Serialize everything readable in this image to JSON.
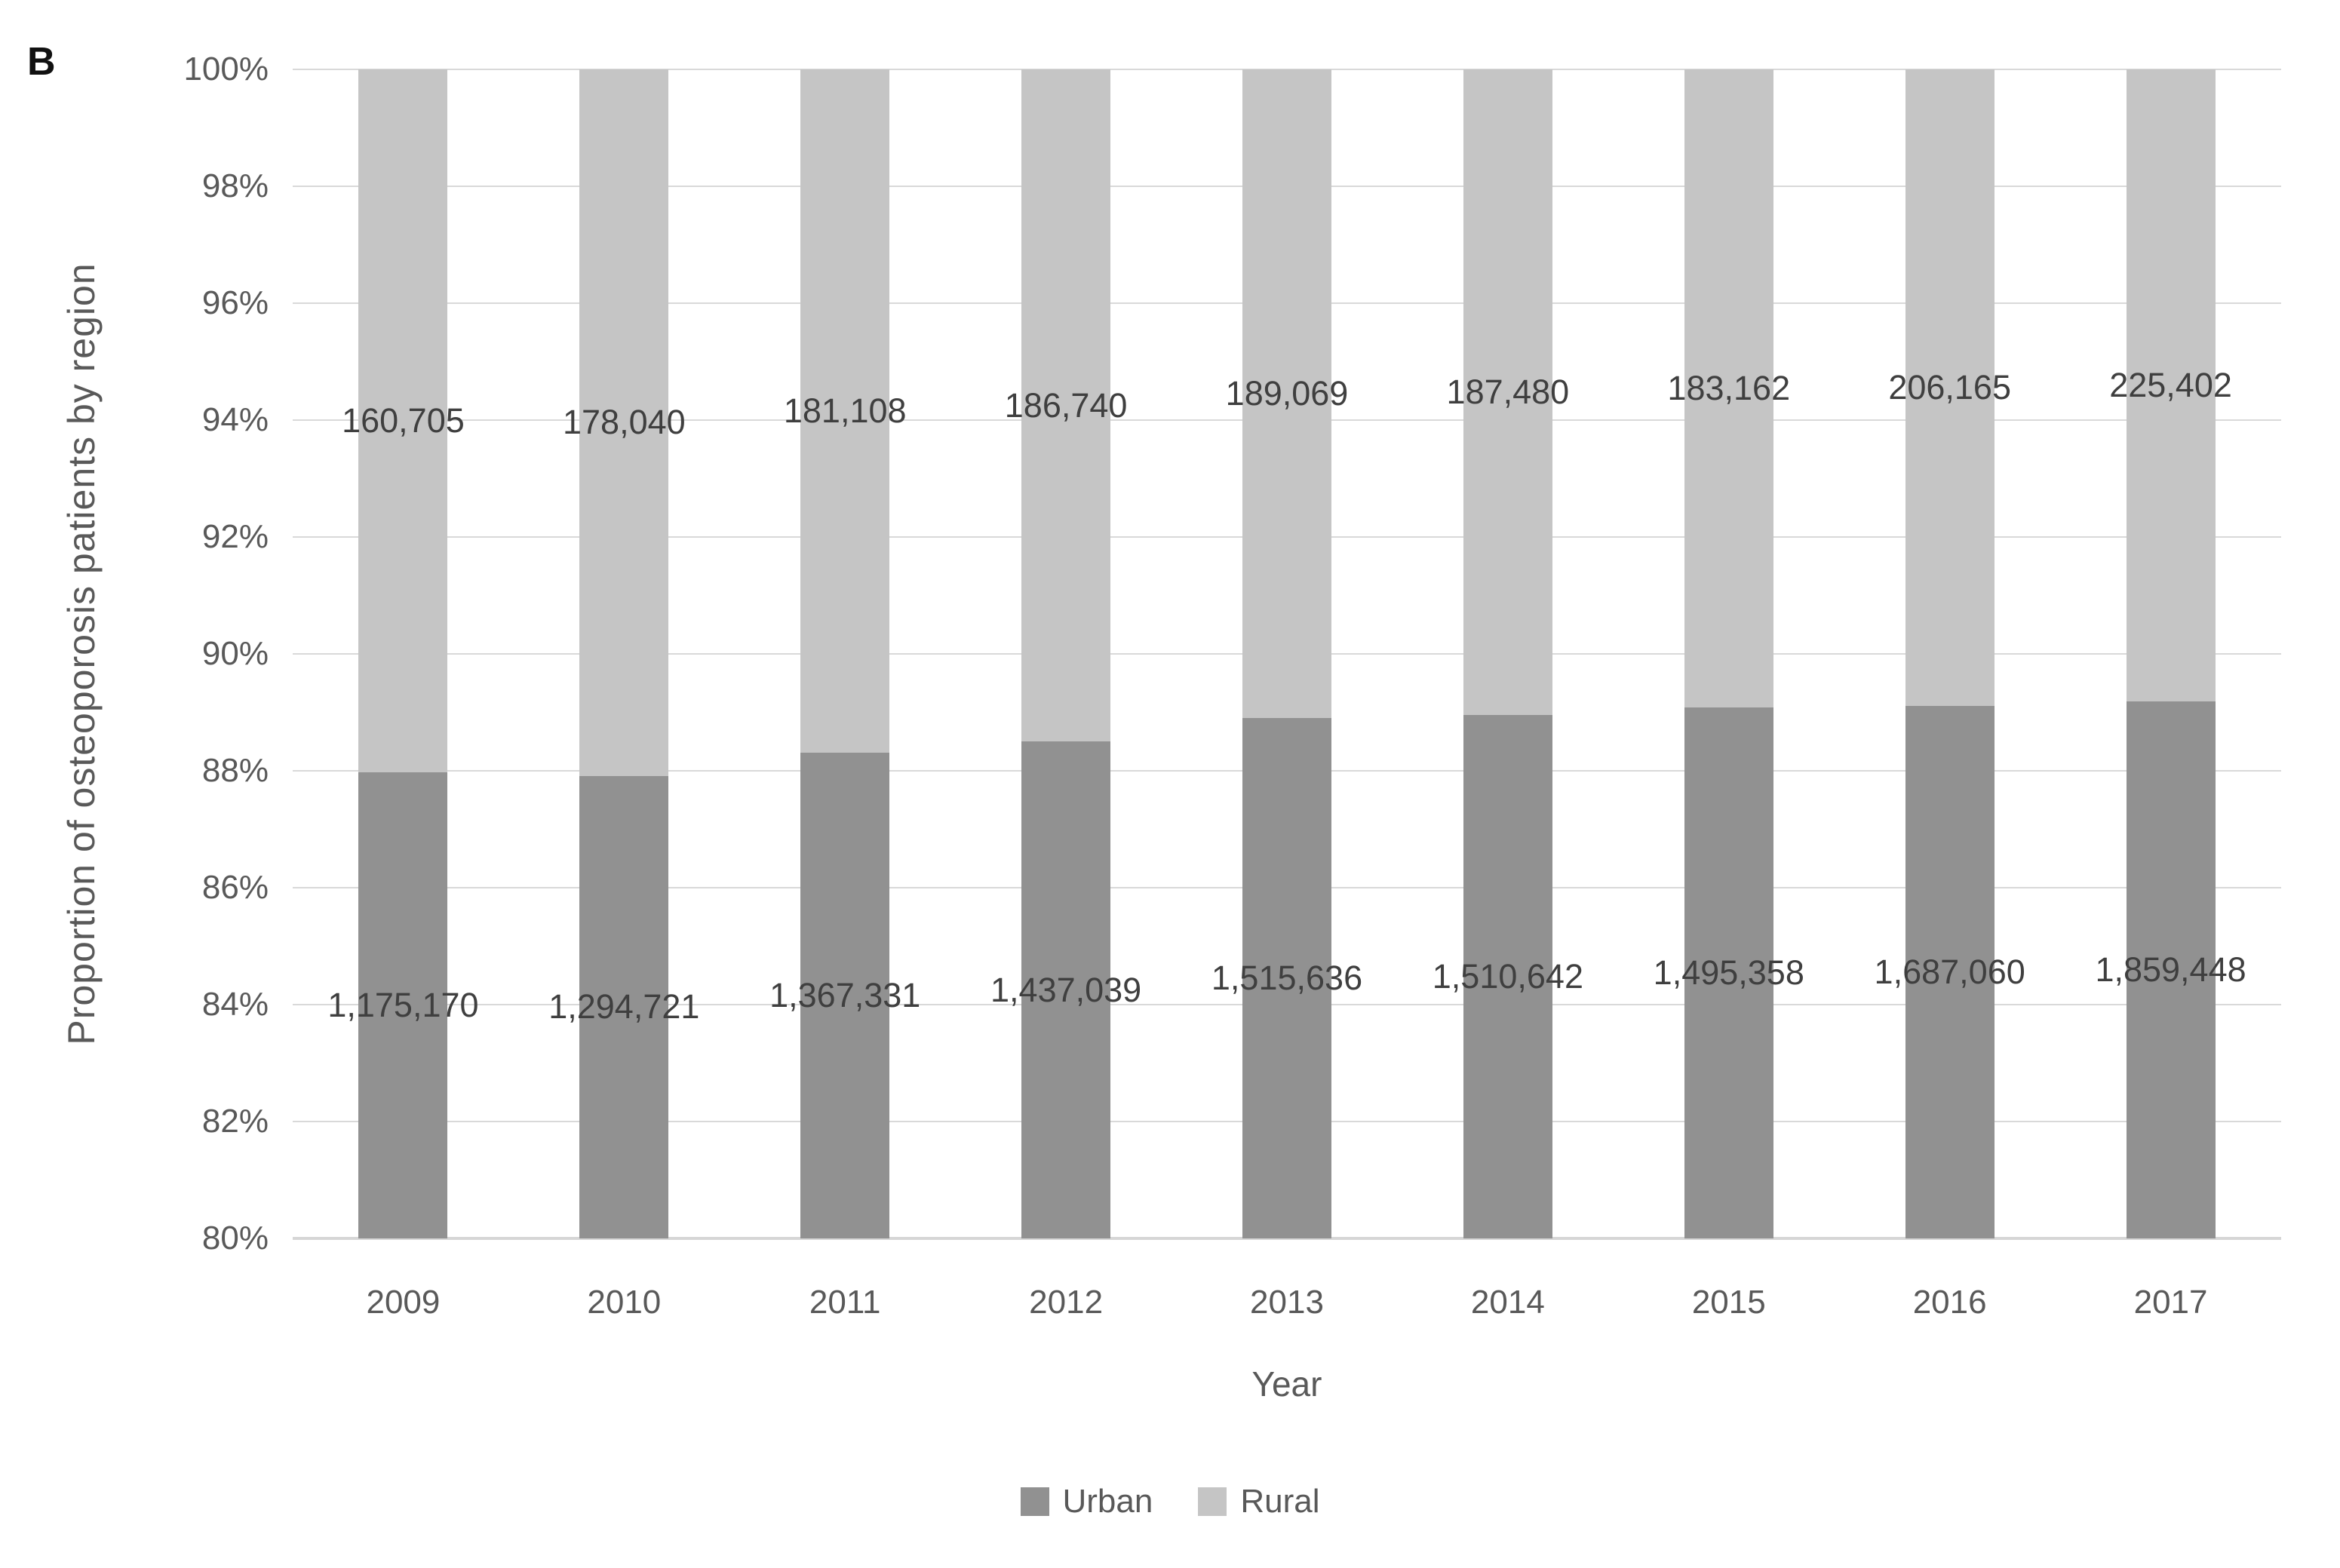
{
  "chart_data": {
    "type": "bar",
    "variant": "stacked-100-percent",
    "panel_label": "B",
    "xlabel": "Year",
    "ylabel": "Proportion of osteoporosis patients by region",
    "categories": [
      "2009",
      "2010",
      "2011",
      "2012",
      "2013",
      "2014",
      "2015",
      "2016",
      "2017"
    ],
    "series": [
      {
        "name": "Urban",
        "color": "#919191",
        "values": [
          1175170,
          1294721,
          1367331,
          1437039,
          1515636,
          1510642,
          1495358,
          1687060,
          1859448
        ],
        "labels": [
          "1,175,170",
          "1,294,721",
          "1,367,331",
          "1,437,039",
          "1,515,636",
          "1,510,642",
          "1,495,358",
          "1,687,060",
          "1,859,448"
        ]
      },
      {
        "name": "Rural",
        "color": "#c5c5c5",
        "values": [
          160705,
          178040,
          181108,
          186740,
          189069,
          187480,
          183162,
          206165,
          225402
        ],
        "labels": [
          "160,705",
          "178,040",
          "181,108",
          "186,740",
          "189,069",
          "187,480",
          "183,162",
          "206,165",
          "225,402"
        ]
      }
    ],
    "ylim": [
      80,
      100
    ],
    "y_tick_step": 2,
    "y_ticks": [
      "80%",
      "82%",
      "84%",
      "86%",
      "88%",
      "90%",
      "92%",
      "94%",
      "96%",
      "98%",
      "100%"
    ],
    "grid": true,
    "legend_position": "bottom",
    "legend_entries": [
      "Urban",
      "Rural"
    ],
    "colors": {
      "grid": "#d9d9d9",
      "axis_line": "#d6d6d6",
      "tick_text": "#595959",
      "data_label_text": "#3f3f3f",
      "background": "#ffffff"
    }
  }
}
